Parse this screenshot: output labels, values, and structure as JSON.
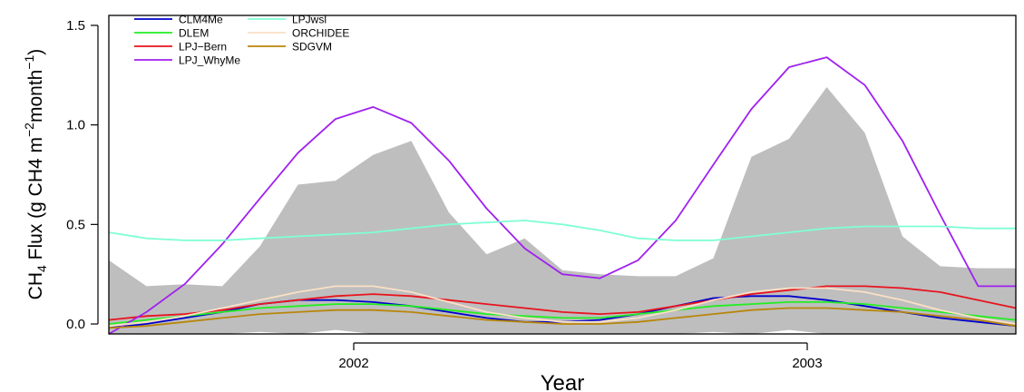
{
  "chart_data": {
    "type": "line",
    "xlabel": "Year",
    "ylabel": {
      "prefix": "CH",
      "sub": "4",
      "mid": " Flux (g CH4 m",
      "sup1": "−2",
      "mid2": "month",
      "sup2": "−1",
      "suffix": ")"
    },
    "xlim": [
      2001.5,
      2003.5
    ],
    "ylim": [
      -0.05,
      1.55
    ],
    "x_ticks": [
      {
        "value": 2002.04,
        "label": "2002"
      },
      {
        "value": 2003.04,
        "label": "2003"
      }
    ],
    "y_ticks": [
      {
        "value": 0.0,
        "label": "0.0"
      },
      {
        "value": 0.5,
        "label": "0.5"
      },
      {
        "value": 1.0,
        "label": "1.0"
      },
      {
        "value": 1.5,
        "label": "1.5"
      }
    ],
    "x": [
      2001.5,
      2001.583,
      2001.667,
      2001.75,
      2001.833,
      2001.917,
      2002.0,
      2002.083,
      2002.167,
      2002.25,
      2002.333,
      2002.417,
      2002.5,
      2002.583,
      2002.667,
      2002.75,
      2002.833,
      2002.917,
      2003.0,
      2003.083,
      2003.167,
      2003.25,
      2003.333,
      2003.417,
      2003.5
    ],
    "band": {
      "color": "#bebebe",
      "upper": [
        0.32,
        0.19,
        0.2,
        0.19,
        0.39,
        0.7,
        0.72,
        0.85,
        0.92,
        0.56,
        0.35,
        0.43,
        0.27,
        0.25,
        0.24,
        0.24,
        0.33,
        0.84,
        0.93,
        1.19,
        0.96,
        0.44,
        0.29,
        0.28,
        0.28
      ],
      "lower": [
        -0.05,
        -0.05,
        -0.05,
        -0.05,
        -0.04,
        -0.05,
        -0.03,
        -0.05,
        -0.05,
        -0.05,
        -0.05,
        -0.05,
        -0.05,
        -0.05,
        -0.05,
        -0.05,
        -0.04,
        -0.05,
        -0.03,
        -0.05,
        -0.05,
        -0.05,
        -0.05,
        -0.05,
        -0.05
      ]
    },
    "series": [
      {
        "name": "CLM4Me",
        "color": "#0000cd",
        "values": [
          -0.02,
          0.0,
          0.03,
          0.06,
          0.1,
          0.12,
          0.12,
          0.11,
          0.09,
          0.06,
          0.03,
          0.01,
          0.01,
          0.02,
          0.05,
          0.09,
          0.13,
          0.14,
          0.14,
          0.12,
          0.09,
          0.06,
          0.03,
          0.01,
          -0.01
        ]
      },
      {
        "name": "DLEM",
        "color": "#22ee22",
        "values": [
          0.0,
          0.02,
          0.04,
          0.06,
          0.08,
          0.09,
          0.1,
          0.1,
          0.09,
          0.07,
          0.05,
          0.04,
          0.03,
          0.03,
          0.05,
          0.07,
          0.09,
          0.1,
          0.11,
          0.11,
          0.1,
          0.08,
          0.06,
          0.04,
          0.02
        ]
      },
      {
        "name": "LPJ−Bern",
        "color": "#e8141e",
        "values": [
          0.02,
          0.04,
          0.05,
          0.07,
          0.1,
          0.12,
          0.14,
          0.15,
          0.14,
          0.12,
          0.1,
          0.08,
          0.06,
          0.05,
          0.06,
          0.09,
          0.12,
          0.15,
          0.17,
          0.19,
          0.19,
          0.18,
          0.16,
          0.12,
          0.08
        ]
      },
      {
        "name": "LPJ_WhyMe",
        "color": "#a020f0",
        "values": [
          -0.05,
          0.06,
          0.2,
          0.4,
          0.63,
          0.86,
          1.03,
          1.09,
          1.01,
          0.82,
          0.58,
          0.38,
          0.25,
          0.23,
          0.32,
          0.52,
          0.8,
          1.08,
          1.29,
          1.34,
          1.2,
          0.92,
          0.55,
          0.19,
          0.19
        ]
      },
      {
        "name": "LPJwsl",
        "color": "#7fffd4",
        "values": [
          0.46,
          0.43,
          0.42,
          0.42,
          0.43,
          0.44,
          0.45,
          0.46,
          0.48,
          0.5,
          0.51,
          0.52,
          0.5,
          0.47,
          0.43,
          0.42,
          0.42,
          0.44,
          0.46,
          0.48,
          0.49,
          0.49,
          0.49,
          0.48,
          0.48
        ]
      },
      {
        "name": "ORCHIDEE",
        "color": "#fae0c6",
        "values": [
          -0.01,
          0.01,
          0.04,
          0.08,
          0.12,
          0.16,
          0.19,
          0.19,
          0.16,
          0.11,
          0.06,
          0.03,
          0.01,
          0.01,
          0.03,
          0.07,
          0.12,
          0.16,
          0.18,
          0.18,
          0.16,
          0.12,
          0.07,
          0.03,
          0.0
        ]
      },
      {
        "name": "SDGVM",
        "color": "#b8860b",
        "values": [
          -0.02,
          -0.01,
          0.01,
          0.03,
          0.05,
          0.06,
          0.07,
          0.07,
          0.06,
          0.04,
          0.02,
          0.01,
          0.0,
          0.0,
          0.01,
          0.03,
          0.05,
          0.07,
          0.08,
          0.08,
          0.07,
          0.06,
          0.04,
          0.02,
          -0.01
        ]
      }
    ],
    "legend": {
      "position": "top-left",
      "columns": [
        [
          "CLM4Me",
          "DLEM",
          "LPJ−Bern",
          "LPJ_WhyMe"
        ],
        [
          "LPJwsl",
          "ORCHIDEE",
          "SDGVM"
        ]
      ]
    },
    "grid": false
  }
}
